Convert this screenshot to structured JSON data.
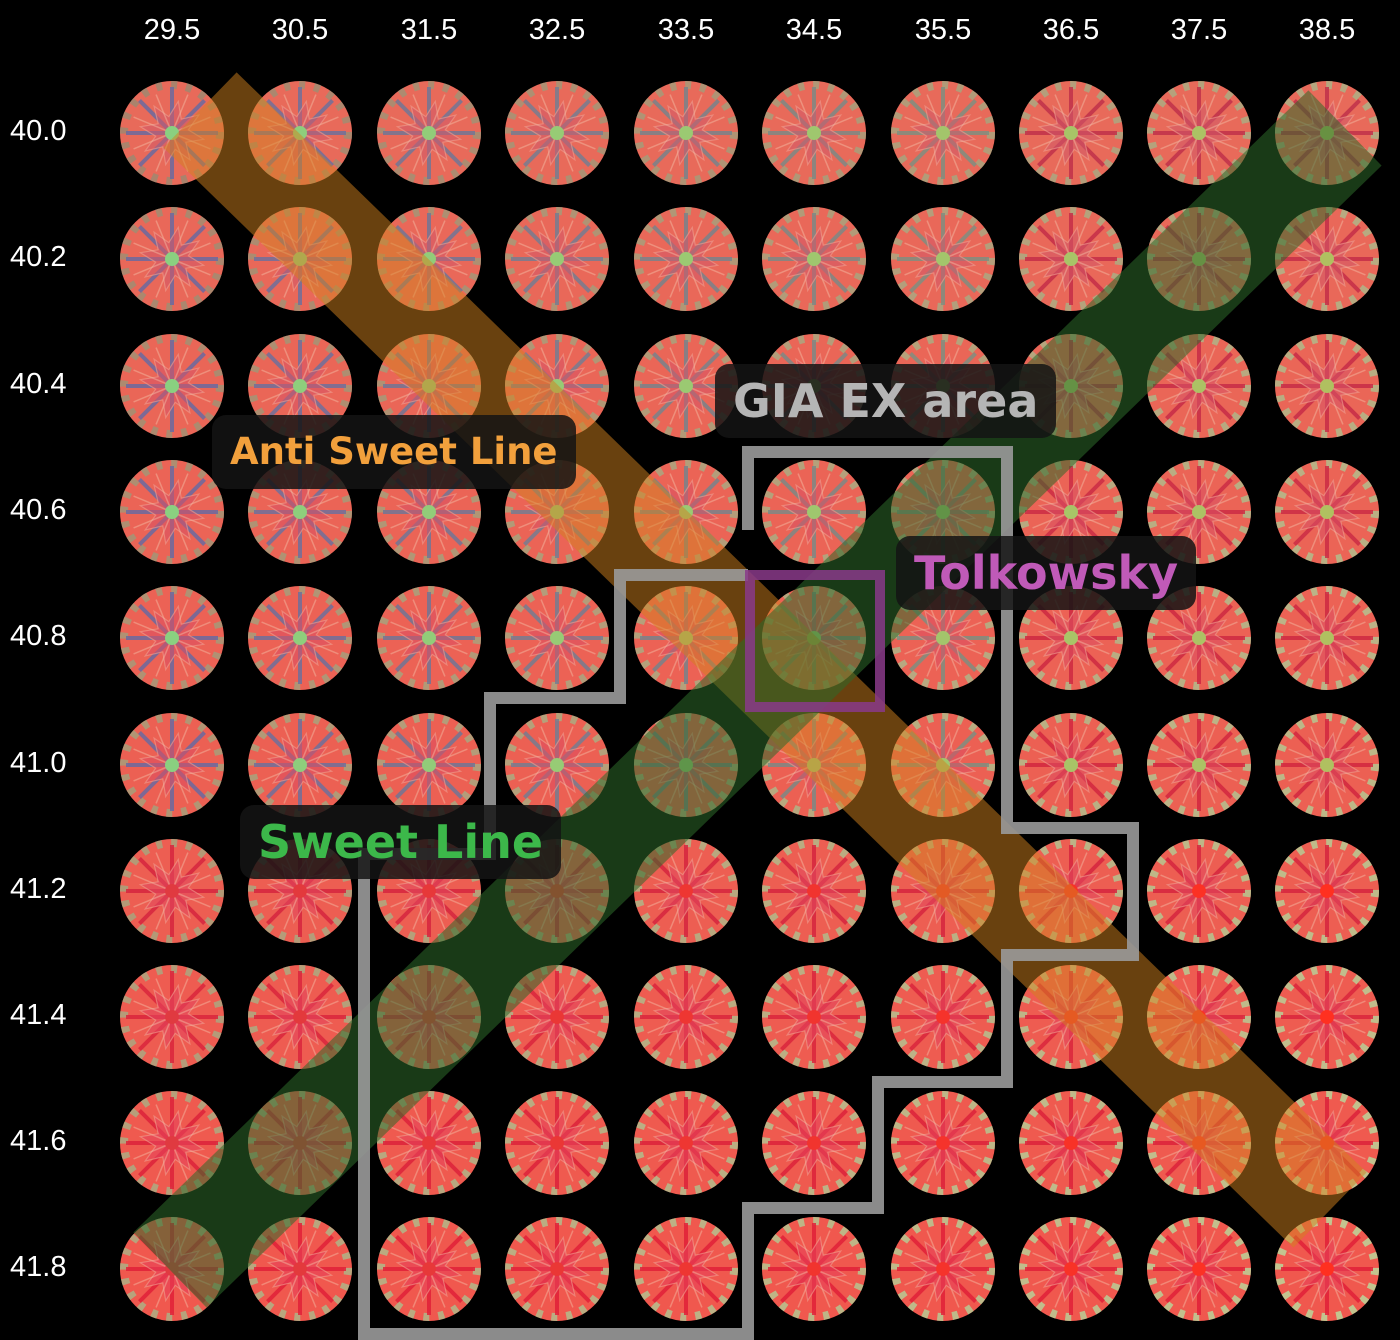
{
  "columns": [
    "29.5",
    "30.5",
    "31.5",
    "32.5",
    "33.5",
    "34.5",
    "35.5",
    "36.5",
    "37.5",
    "38.5"
  ],
  "rows": [
    "40.0",
    "40.2",
    "40.4",
    "40.6",
    "40.8",
    "41.0",
    "41.2",
    "41.4",
    "41.6",
    "41.8"
  ],
  "labels": {
    "anti_sweet_line": "Anti Sweet Line",
    "gia_ex_area": "GIA EX area",
    "tolkowsky": "Tolkowsky",
    "sweet_line": "Sweet Line"
  },
  "colors": {
    "background": "#000000",
    "anti_sweet_band": "#d2821e",
    "sweet_band": "#2e6a2a",
    "gia_outline": "#9a9a9a",
    "tolkowsky_box": "#8a3a8a"
  }
}
